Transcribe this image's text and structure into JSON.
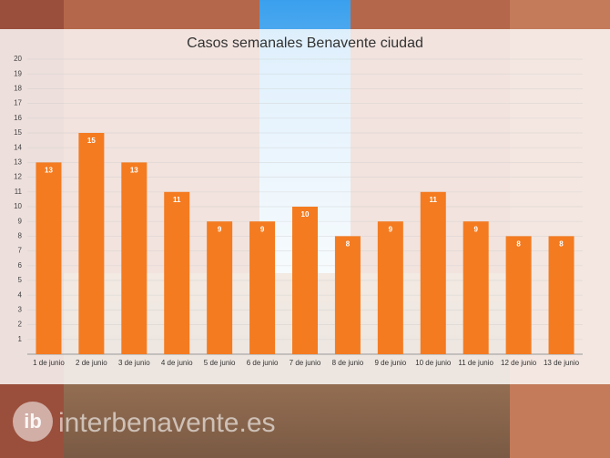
{
  "chart_data": {
    "type": "bar",
    "title": "Casos semanales Benavente ciudad",
    "categories": [
      "1 de junio",
      "2 de junio",
      "3 de junio",
      "4 de junio",
      "5 de junio",
      "6 de junio",
      "7 de junio",
      "8 de junio",
      "9 de junio",
      "10 de junio",
      "11 de junio",
      "12 de junio",
      "13 de junio"
    ],
    "values": [
      13,
      15,
      13,
      11,
      9,
      9,
      10,
      8,
      9,
      11,
      9,
      8,
      8
    ],
    "color": "#f47b20",
    "ylim": [
      0,
      20
    ],
    "yticks": [
      1,
      2,
      3,
      4,
      5,
      6,
      7,
      8,
      9,
      10,
      11,
      12,
      13,
      14,
      15,
      16,
      17,
      18,
      19,
      20
    ],
    "grid": true
  },
  "watermark": {
    "logo": "ib",
    "site": "interbenavente.es"
  }
}
